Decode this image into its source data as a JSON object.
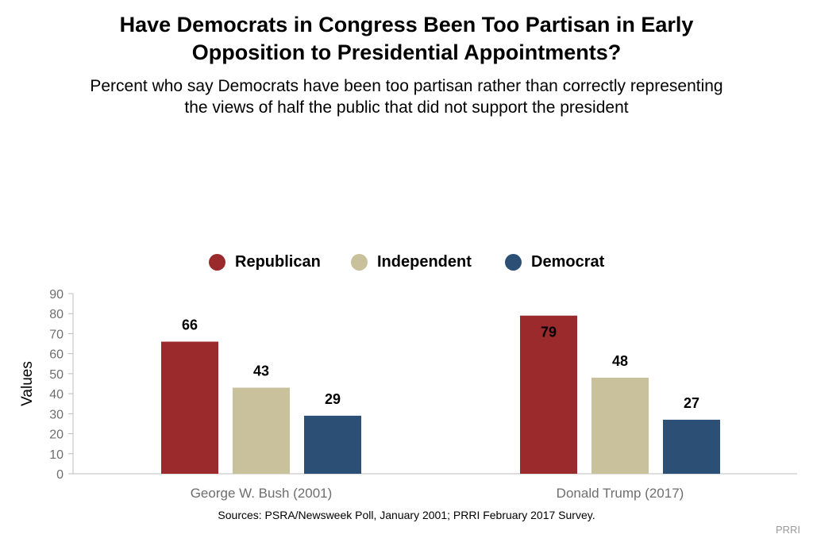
{
  "title": {
    "line1": "Have Democrats in Congress Been Too Partisan in Early",
    "line2": "Opposition to Presidential Appointments?"
  },
  "subtitle": {
    "line1": "Percent who say Democrats have been too partisan rather than correctly representing",
    "line2": "the views of half the public that did not support the president"
  },
  "sources": "Sources: PSRA/Newsweek Poll, January 2001; PRRI February 2017 Survey.",
  "credit": "PRRI",
  "colors": {
    "republican": "#9b2a2d",
    "independent": "#c8c19b",
    "democrat": "#2b4f75",
    "axis_text": "#6e6e6e",
    "axis_line": "#bdbdbd"
  },
  "chart_data": {
    "type": "bar",
    "categories": [
      "George W. Bush (2001)",
      "Donald Trump (2017)"
    ],
    "series": [
      {
        "name": "Republican",
        "values": [
          66,
          79
        ]
      },
      {
        "name": "Independent",
        "values": [
          43,
          48
        ]
      },
      {
        "name": "Democrat",
        "values": [
          29,
          27
        ]
      }
    ],
    "ylabel": "Values",
    "xlabel": "",
    "ylim": [
      0,
      90
    ],
    "yticks": [
      0,
      10,
      20,
      30,
      40,
      50,
      60,
      70,
      80,
      90
    ],
    "legend_position": "top-center",
    "grid": false,
    "data_labels": true
  }
}
